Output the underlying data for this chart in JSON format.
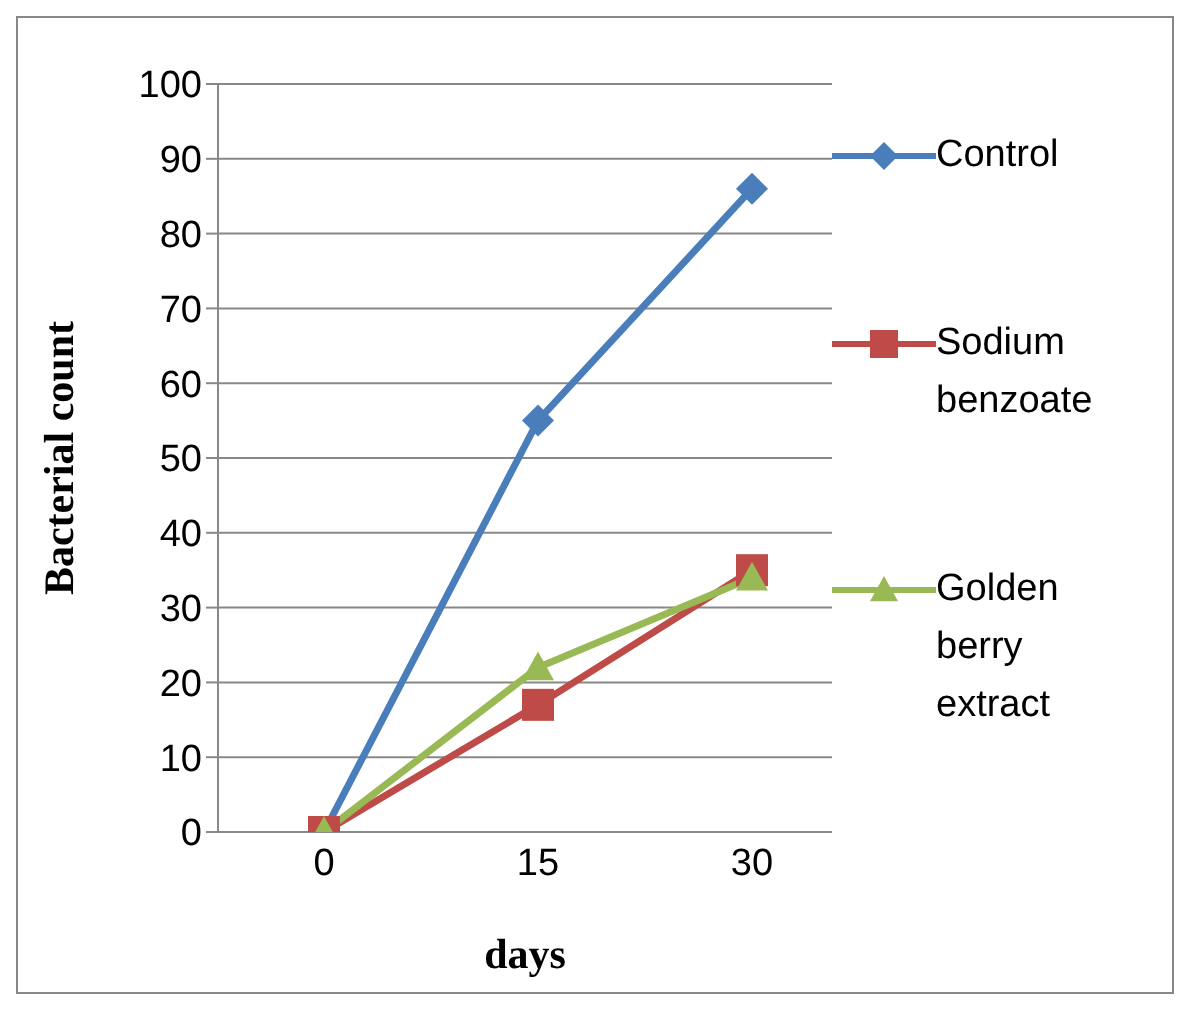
{
  "chart_data": {
    "type": "line",
    "xlabel": "days",
    "ylabel": "Bacterial count",
    "categories": [
      "0",
      "15",
      "30"
    ],
    "series": [
      {
        "name": "Control",
        "color": "#4a7ebb",
        "marker": "diamond",
        "values": [
          0,
          55,
          86
        ]
      },
      {
        "name": "Sodium benzoate",
        "color": "#be4b48",
        "marker": "square",
        "values": [
          0,
          17,
          35
        ]
      },
      {
        "name": "Golden berry extract",
        "color": "#98b954",
        "marker": "triangle",
        "values": [
          0,
          22,
          34
        ]
      }
    ],
    "ylim": [
      0,
      100
    ],
    "yticks": [
      0,
      10,
      20,
      30,
      40,
      50,
      60,
      70,
      80,
      90,
      100
    ],
    "grid": "y",
    "legend": "right"
  }
}
